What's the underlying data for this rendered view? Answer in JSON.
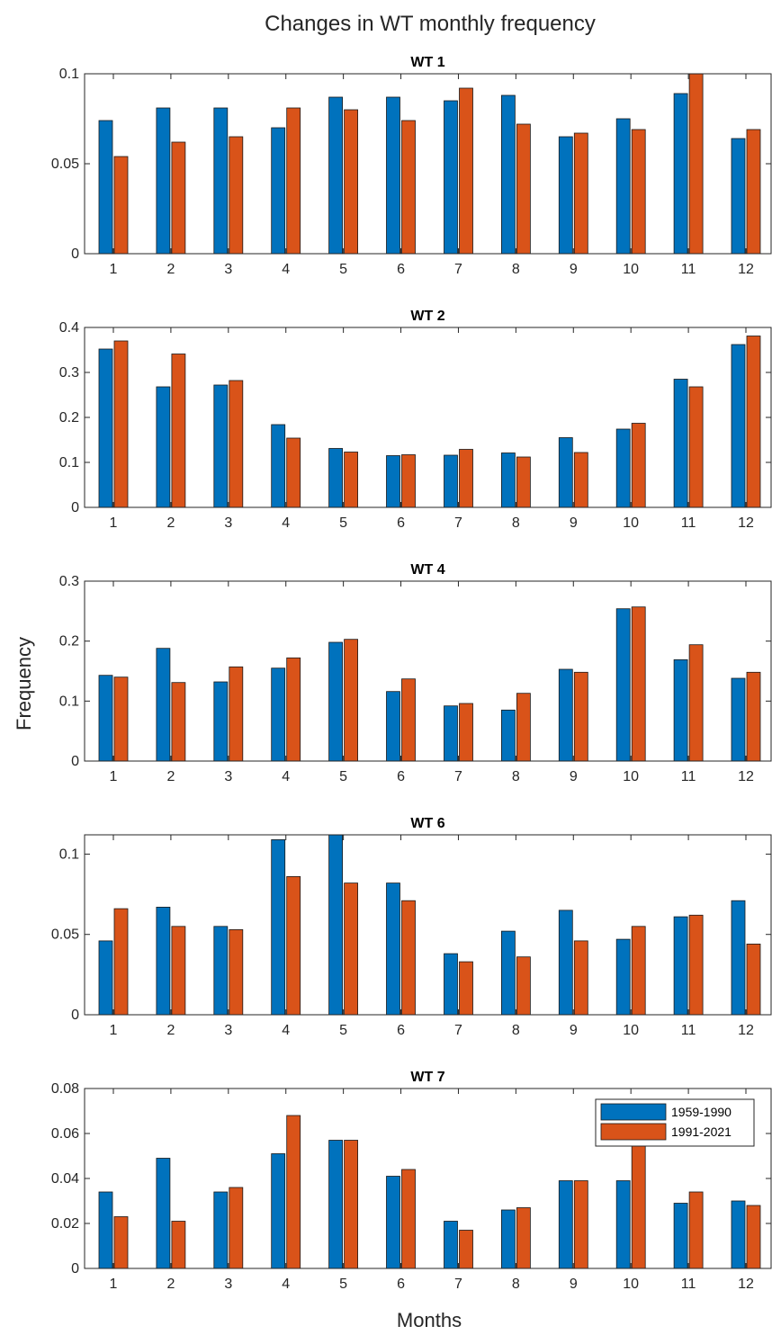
{
  "figure": {
    "title": "Changes in WT monthly frequency",
    "xlabel": "Months",
    "ylabel": "Frequency"
  },
  "legend": {
    "placement": "top-right of last panel",
    "entries": [
      "1959-1990",
      "1991-2021"
    ]
  },
  "colors": {
    "series_1": "#0072BD",
    "series_2": "#D95319",
    "axis": "#262626"
  },
  "chart_data": [
    {
      "type": "bar",
      "title": "WT 1",
      "categories": [
        "1",
        "2",
        "3",
        "4",
        "5",
        "6",
        "7",
        "8",
        "9",
        "10",
        "11",
        "12"
      ],
      "ylim": [
        0,
        0.1
      ],
      "yticks": [
        0,
        0.05,
        0.1
      ],
      "ytick_labels": [
        "0",
        "0.05",
        "0.1"
      ],
      "series": [
        {
          "name": "1959-1990",
          "values": [
            0.074,
            0.081,
            0.081,
            0.07,
            0.087,
            0.087,
            0.085,
            0.088,
            0.065,
            0.075,
            0.089,
            0.064
          ]
        },
        {
          "name": "1991-2021",
          "values": [
            0.054,
            0.062,
            0.065,
            0.081,
            0.08,
            0.074,
            0.092,
            0.072,
            0.067,
            0.069,
            0.101,
            0.069
          ]
        }
      ]
    },
    {
      "type": "bar",
      "title": "WT 2",
      "categories": [
        "1",
        "2",
        "3",
        "4",
        "5",
        "6",
        "7",
        "8",
        "9",
        "10",
        "11",
        "12"
      ],
      "ylim": [
        0,
        0.4
      ],
      "yticks": [
        0,
        0.1,
        0.2,
        0.3,
        0.4
      ],
      "ytick_labels": [
        "0",
        "0.1",
        "0.2",
        "0.3",
        "0.4"
      ],
      "series": [
        {
          "name": "1959-1990",
          "values": [
            0.352,
            0.268,
            0.272,
            0.184,
            0.131,
            0.115,
            0.116,
            0.121,
            0.155,
            0.174,
            0.285,
            0.362
          ]
        },
        {
          "name": "1991-2021",
          "values": [
            0.37,
            0.341,
            0.282,
            0.154,
            0.123,
            0.117,
            0.129,
            0.112,
            0.122,
            0.187,
            0.268,
            0.381
          ]
        }
      ]
    },
    {
      "type": "bar",
      "title": "WT 4",
      "categories": [
        "1",
        "2",
        "3",
        "4",
        "5",
        "6",
        "7",
        "8",
        "9",
        "10",
        "11",
        "12"
      ],
      "ylim": [
        0,
        0.3
      ],
      "yticks": [
        0,
        0.1,
        0.2,
        0.3
      ],
      "ytick_labels": [
        "0",
        "0.1",
        "0.2",
        "0.3"
      ],
      "series": [
        {
          "name": "1959-1990",
          "values": [
            0.143,
            0.188,
            0.132,
            0.155,
            0.198,
            0.116,
            0.092,
            0.085,
            0.153,
            0.254,
            0.169,
            0.138
          ]
        },
        {
          "name": "1991-2021",
          "values": [
            0.14,
            0.131,
            0.157,
            0.172,
            0.203,
            0.137,
            0.096,
            0.113,
            0.148,
            0.257,
            0.194,
            0.148
          ]
        }
      ]
    },
    {
      "type": "bar",
      "title": "WT 6",
      "categories": [
        "1",
        "2",
        "3",
        "4",
        "5",
        "6",
        "7",
        "8",
        "9",
        "10",
        "11",
        "12"
      ],
      "ylim": [
        0,
        0.112
      ],
      "yticks": [
        0,
        0.05,
        0.1
      ],
      "ytick_labels": [
        "0",
        "0.05",
        "0.1"
      ],
      "series": [
        {
          "name": "1959-1990",
          "values": [
            0.046,
            0.067,
            0.055,
            0.109,
            0.113,
            0.082,
            0.038,
            0.052,
            0.065,
            0.047,
            0.061,
            0.071
          ]
        },
        {
          "name": "1991-2021",
          "values": [
            0.066,
            0.055,
            0.053,
            0.086,
            0.082,
            0.071,
            0.033,
            0.036,
            0.046,
            0.055,
            0.062,
            0.044
          ]
        }
      ]
    },
    {
      "type": "bar",
      "title": "WT 7",
      "categories": [
        "1",
        "2",
        "3",
        "4",
        "5",
        "6",
        "7",
        "8",
        "9",
        "10",
        "11",
        "12"
      ],
      "ylim": [
        0,
        0.08
      ],
      "yticks": [
        0,
        0.02,
        0.04,
        0.06,
        0.08
      ],
      "ytick_labels": [
        "0",
        "0.02",
        "0.04",
        "0.06",
        "0.08"
      ],
      "legend": true,
      "series": [
        {
          "name": "1959-1990",
          "values": [
            0.034,
            0.049,
            0.034,
            0.051,
            0.057,
            0.041,
            0.021,
            0.026,
            0.039,
            0.039,
            0.029,
            0.03
          ]
        },
        {
          "name": "1991-2021",
          "values": [
            0.023,
            0.021,
            0.036,
            0.068,
            0.057,
            0.044,
            0.017,
            0.027,
            0.039,
            0.055,
            0.034,
            0.028
          ]
        }
      ]
    }
  ]
}
